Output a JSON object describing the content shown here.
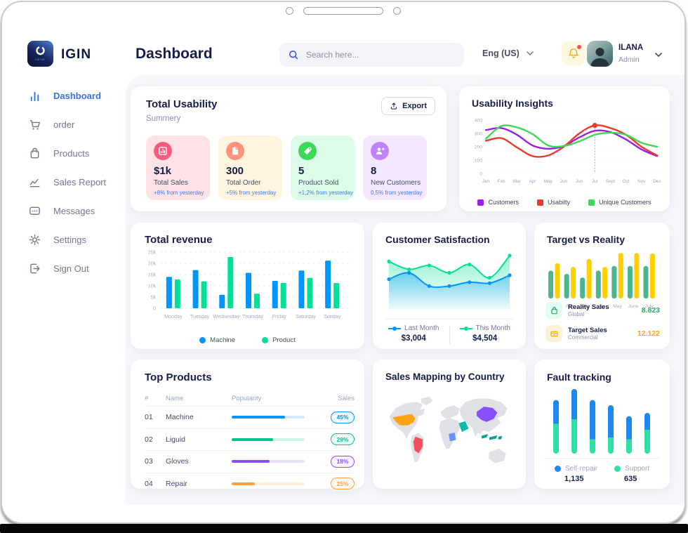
{
  "brand": {
    "name": "IGIN"
  },
  "header": {
    "title": "Dashboard",
    "search_placeholder": "Search here...",
    "language": "Eng (US)",
    "user": {
      "name": "ILANA",
      "role": "Admin"
    }
  },
  "sidebar": {
    "items": [
      {
        "label": "Dashboard",
        "icon": "bar-chart-icon",
        "active": true
      },
      {
        "label": "order",
        "icon": "cart-icon",
        "active": false
      },
      {
        "label": "Products",
        "icon": "bag-icon",
        "active": false
      },
      {
        "label": "Sales Report",
        "icon": "line-chart-icon",
        "active": false
      },
      {
        "label": "Messages",
        "icon": "message-icon",
        "active": false
      },
      {
        "label": "Settings",
        "icon": "gear-icon",
        "active": false
      },
      {
        "label": "Sign Out",
        "icon": "sign-out-icon",
        "active": false
      }
    ]
  },
  "total_usability": {
    "title": "Total Usability",
    "subtitle": "Summery",
    "export_label": "Export",
    "stats": [
      {
        "value": "$1k",
        "label": "Total Sales",
        "delta": "+8% from yesterday",
        "bg": "#ffe2e6",
        "icon_bg": "#fa5a7d",
        "icon": "bar-chart-stat-icon"
      },
      {
        "value": "300",
        "label": "Total Order",
        "delta": "+5% from yesterday",
        "bg": "#fff4de",
        "icon_bg": "#ff947a",
        "icon": "file-stat-icon"
      },
      {
        "value": "5",
        "label": "Product Sold",
        "delta": "+1,2% from yesterday",
        "bg": "#dcfce7",
        "icon_bg": "#3cd856",
        "icon": "tag-stat-icon"
      },
      {
        "value": "8",
        "label": "New Customers",
        "delta": "0,5% from yesterday",
        "bg": "#f3e8ff",
        "icon_bg": "#bf83ff",
        "icon": "user-plus-stat-icon"
      }
    ]
  },
  "usability_insights": {
    "title": "Usability Insights",
    "chart_data": {
      "type": "line",
      "x": [
        "Jan",
        "Feb",
        "Mar",
        "Apr",
        "May",
        "Jun",
        "Jun",
        "Jul",
        "Sept",
        "Oct",
        "Nov",
        "Des"
      ],
      "ylim": [
        0,
        400
      ],
      "yticks": [
        0,
        100,
        200,
        300,
        400
      ],
      "series": [
        {
          "name": "Customers",
          "color": "#9b1fe8",
          "values": [
            325,
            340,
            290,
            210,
            185,
            205,
            270,
            320,
            310,
            255,
            180,
            130
          ]
        },
        {
          "name": "Usabilty",
          "color": "#ef3826",
          "values": [
            245,
            265,
            195,
            130,
            135,
            200,
            300,
            360,
            340,
            290,
            200,
            135
          ]
        },
        {
          "name": "Unique Customers",
          "color": "#3cd856",
          "values": [
            260,
            355,
            345,
            295,
            210,
            205,
            240,
            290,
            305,
            290,
            230,
            200
          ]
        }
      ],
      "marker": {
        "series_index": 1,
        "point_index": 7
      }
    }
  },
  "total_revenue": {
    "title": "Total revenue",
    "chart_data": {
      "type": "bar",
      "categories": [
        "Monday",
        "Tuesday",
        "Wednesday",
        "Thursday",
        "Friday",
        "Saturday",
        "Sunday"
      ],
      "ylim": [
        0,
        25000
      ],
      "ytick_labels": [
        "0",
        "5k",
        "10k",
        "15k",
        "20k",
        "25k"
      ],
      "series": [
        {
          "name": "Machine",
          "color": "#0095ff",
          "values": [
            14000,
            17000,
            6000,
            15800,
            12200,
            16800,
            21200
          ]
        },
        {
          "name": "Product",
          "color": "#00e096",
          "values": [
            12800,
            12000,
            22800,
            6500,
            11300,
            13500,
            11200
          ]
        }
      ]
    }
  },
  "customer_satisfaction": {
    "title": "Customer Satisfaction",
    "chart_data": {
      "type": "area",
      "ylim": [
        0,
        100
      ],
      "series": [
        {
          "name": "Last Month",
          "color": "#0095ff",
          "values": [
            42,
            55,
            28,
            28,
            36,
            34,
            50
          ]
        },
        {
          "name": "This Month",
          "color": "#00e096",
          "values": [
            78,
            62,
            70,
            55,
            72,
            45,
            90
          ]
        }
      ]
    },
    "legend": [
      {
        "label": "Last Month",
        "value": "$3,004",
        "color": "#0095ff"
      },
      {
        "label": "This Month",
        "value": "$4,504",
        "color": "#00e096"
      }
    ]
  },
  "target_vs_reality": {
    "title": "Target vs Reality",
    "chart_data": {
      "type": "bar",
      "categories": [
        "Jan",
        "Feb",
        "Mar",
        "Apr",
        "May",
        "June",
        "July"
      ],
      "ylim": [
        0,
        10
      ],
      "series": [
        {
          "name": "Reality Sales",
          "color": "#4ab58e",
          "values": [
            6,
            5.3,
            4.5,
            6,
            7,
            7,
            7
          ]
        },
        {
          "name": "Target Sales",
          "color": "#ffcf00",
          "values": [
            7.6,
            6.8,
            8.5,
            6.8,
            9.8,
            9.8,
            9.7
          ]
        }
      ]
    },
    "legend": [
      {
        "label": "Reality Sales",
        "sublabel": "Global",
        "value": "8.823",
        "value_color": "#27ae60",
        "icon_bg": "#e2fbf3",
        "icon_color": "#27ae60"
      },
      {
        "label": "Target Sales",
        "sublabel": "Commercial",
        "value": "12.122",
        "value_color": "#ffa412",
        "icon_bg": "#fdf2d9",
        "icon_color": "#e3b305"
      }
    ]
  },
  "top_products": {
    "title": "Top Products",
    "columns": [
      "#",
      "Name",
      "Popularity",
      "Sales"
    ],
    "rows": [
      {
        "num": "01",
        "name": "Machine",
        "popularity": 0.73,
        "sales": "45%",
        "color": "#0095ff"
      },
      {
        "num": "02",
        "name": "Liguid",
        "popularity": 0.57,
        "sales": "29%",
        "color": "#00c48c"
      },
      {
        "num": "03",
        "name": "Gloves",
        "popularity": 0.52,
        "sales": "18%",
        "color": "#884dff"
      },
      {
        "num": "04",
        "name": "Repair",
        "popularity": 0.32,
        "sales": "25%",
        "color": "#ff9f38"
      }
    ]
  },
  "sales_mapping": {
    "title": "Sales Mapping by Country",
    "countries": [
      {
        "name": "United States",
        "color": "#ffa412"
      },
      {
        "name": "Brazil",
        "color": "#f64e60"
      },
      {
        "name": "China",
        "color": "#8950fc"
      },
      {
        "name": "Saudi Arabia",
        "color": "#14b8a6"
      },
      {
        "name": "DR Congo",
        "color": "#6993ff"
      },
      {
        "name": "Indonesia",
        "color": "#00a389"
      }
    ]
  },
  "fault_tracking": {
    "title": "Fault tracking",
    "chart_data": {
      "type": "stacked-bar",
      "ylim": [
        0,
        10
      ],
      "series": [
        {
          "name": "Support",
          "color": "#2fe0a3",
          "values": [
            4.6,
            5.3,
            2.2,
            2.5,
            2.2,
            3.7
          ]
        },
        {
          "name": "Self-repair",
          "color": "#1e87f0",
          "values": [
            3.7,
            4.7,
            6.1,
            5.0,
            3.6,
            2.6
          ]
        }
      ]
    },
    "legend": [
      {
        "label": "Self-repair",
        "value": "1,135",
        "color": "#1e87f0"
      },
      {
        "label": "Support",
        "value": "635",
        "color": "#2fe0a3"
      }
    ]
  }
}
